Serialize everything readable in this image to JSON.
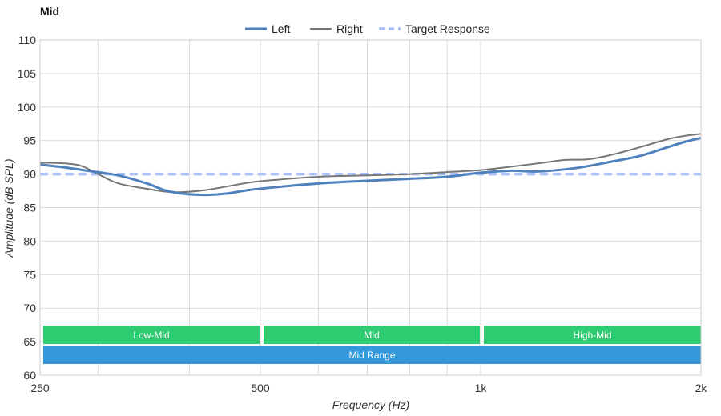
{
  "chart_data": {
    "type": "line",
    "title": "Mid",
    "xlabel": "Frequency (Hz)",
    "ylabel": "Amplitude (dB SPL)",
    "x_scale": "log",
    "xlim": [
      250,
      2000
    ],
    "ylim": [
      60,
      110
    ],
    "x_ticks": [
      {
        "value": 250,
        "label": "250"
      },
      {
        "value": 500,
        "label": "500"
      },
      {
        "value": 1000,
        "label": "1k"
      },
      {
        "value": 2000,
        "label": "2k"
      }
    ],
    "x_minor_gridlines": [
      300,
      400,
      600,
      700,
      800,
      900
    ],
    "y_ticks": [
      60,
      65,
      70,
      75,
      80,
      85,
      90,
      95,
      100,
      105,
      110
    ],
    "grid": true,
    "legend_position": "top-center",
    "series": [
      {
        "name": "Left",
        "color": "#4f81bd",
        "style": "thick-solid",
        "points": [
          [
            250,
            91.4
          ],
          [
            270,
            91.0
          ],
          [
            290,
            90.5
          ],
          [
            320,
            89.8
          ],
          [
            350,
            88.6
          ],
          [
            370,
            87.6
          ],
          [
            390,
            87.1
          ],
          [
            420,
            86.9
          ],
          [
            450,
            87.1
          ],
          [
            480,
            87.6
          ],
          [
            520,
            88.0
          ],
          [
            600,
            88.6
          ],
          [
            700,
            89.0
          ],
          [
            800,
            89.3
          ],
          [
            900,
            89.6
          ],
          [
            1000,
            90.2
          ],
          [
            1100,
            90.5
          ],
          [
            1200,
            90.4
          ],
          [
            1350,
            90.9
          ],
          [
            1500,
            91.8
          ],
          [
            1650,
            92.7
          ],
          [
            1800,
            94.0
          ],
          [
            1900,
            94.8
          ],
          [
            2000,
            95.4
          ]
        ]
      },
      {
        "name": "Right",
        "color": "#777777",
        "style": "thin-solid",
        "points": [
          [
            250,
            91.7
          ],
          [
            270,
            91.6
          ],
          [
            285,
            91.2
          ],
          [
            300,
            90.0
          ],
          [
            320,
            88.6
          ],
          [
            350,
            87.8
          ],
          [
            380,
            87.3
          ],
          [
            420,
            87.6
          ],
          [
            480,
            88.7
          ],
          [
            520,
            89.1
          ],
          [
            600,
            89.6
          ],
          [
            700,
            89.8
          ],
          [
            800,
            90.0
          ],
          [
            900,
            90.3
          ],
          [
            1000,
            90.6
          ],
          [
            1100,
            91.1
          ],
          [
            1200,
            91.6
          ],
          [
            1300,
            92.1
          ],
          [
            1400,
            92.2
          ],
          [
            1500,
            92.8
          ],
          [
            1650,
            94.0
          ],
          [
            1800,
            95.2
          ],
          [
            1900,
            95.7
          ],
          [
            2000,
            96.0
          ]
        ]
      },
      {
        "name": "Target Response",
        "color": "#a9bff7",
        "style": "dashed",
        "points": [
          [
            250,
            90
          ],
          [
            2000,
            90
          ]
        ]
      }
    ],
    "bands": [
      {
        "label": "Low-Mid",
        "from": 250,
        "to": 500,
        "row": 1,
        "color": "#2ecc71"
      },
      {
        "label": "Mid",
        "from": 500,
        "to": 1000,
        "row": 1,
        "color": "#2ecc71"
      },
      {
        "label": "High-Mid",
        "from": 1000,
        "to": 2000,
        "row": 1,
        "color": "#2ecc71"
      },
      {
        "label": "Mid Range",
        "from": 250,
        "to": 2000,
        "row": 2,
        "color": "#3498db"
      }
    ]
  }
}
